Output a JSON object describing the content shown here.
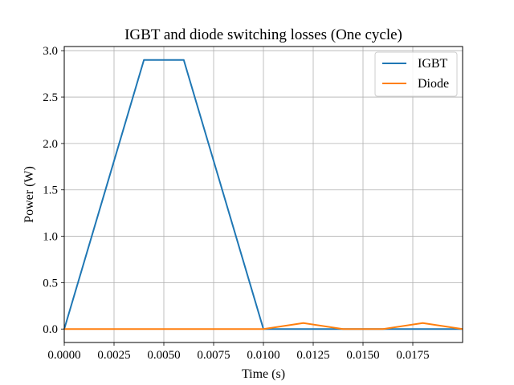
{
  "chart_data": {
    "type": "line",
    "title": "IGBT and diode switching losses (One cycle)",
    "xlabel": "Time (s)",
    "ylabel": "Power (W)",
    "xlim": [
      0,
      0.02
    ],
    "ylim": [
      -0.145,
      3.045
    ],
    "xticks": [
      0.0,
      0.0025,
      0.005,
      0.0075,
      0.01,
      0.0125,
      0.015,
      0.0175
    ],
    "xtick_labels": [
      "0.0000",
      "0.0025",
      "0.0050",
      "0.0075",
      "0.0100",
      "0.0125",
      "0.0150",
      "0.0175"
    ],
    "yticks": [
      0.0,
      0.5,
      1.0,
      1.5,
      2.0,
      2.5,
      3.0
    ],
    "ytick_labels": [
      "0.0",
      "0.5",
      "1.0",
      "1.5",
      "2.0",
      "2.5",
      "3.0"
    ],
    "grid": true,
    "legend_position": "top-right",
    "series": [
      {
        "name": "IGBT",
        "color": "#1f77b4",
        "x": [
          0.0,
          0.004,
          0.006,
          0.01,
          0.02
        ],
        "y": [
          0.0,
          2.9,
          2.9,
          0.0,
          0.0
        ]
      },
      {
        "name": "Diode",
        "color": "#ff7f0e",
        "x": [
          0.0,
          0.01,
          0.012,
          0.014,
          0.016,
          0.018,
          0.02
        ],
        "y": [
          0.0,
          0.0,
          0.065,
          0.0,
          0.0,
          0.065,
          0.0
        ]
      }
    ]
  }
}
